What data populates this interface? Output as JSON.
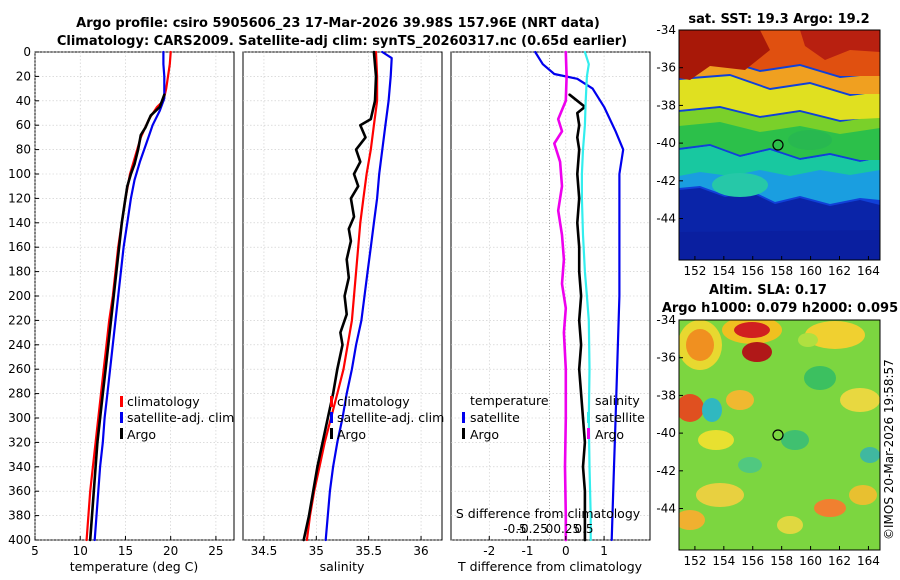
{
  "header": {
    "line1": "Argo profile: csiro 5905606_23 17-Mar-2026 39.98S 157.96E (NRT data)",
    "line2": "Climatology: CARS2009. Satellite-adj clim: synTS_20260317.nc (0.65d earlier)"
  },
  "colors": {
    "climatology": "#ff0000",
    "satellite": "#0000ee",
    "argo": "#000000",
    "s_satellite": "#33eeee",
    "s_argo": "#ee00ee"
  },
  "depth_axis": {
    "min": 0,
    "max": 400,
    "ticks": [
      0,
      20,
      40,
      60,
      80,
      100,
      120,
      140,
      160,
      180,
      200,
      220,
      240,
      260,
      280,
      300,
      320,
      340,
      360,
      380,
      400
    ]
  },
  "chart_data": [
    {
      "type": "line",
      "title": "",
      "xlabel": "temperature (deg C)",
      "ylabel": "depth",
      "xlim": [
        5,
        27
      ],
      "ylim": [
        0,
        400
      ],
      "xticks": [
        5,
        10,
        15,
        20,
        25
      ],
      "legend": [
        "climatology",
        "satellite-adj. clim",
        "Argo"
      ],
      "series": [
        {
          "name": "climatology",
          "color": "#ff0000",
          "points": [
            [
              20.0,
              0
            ],
            [
              19.9,
              10
            ],
            [
              19.7,
              20
            ],
            [
              19.5,
              30
            ],
            [
              19.2,
              40
            ],
            [
              18.5,
              45
            ],
            [
              17.6,
              55
            ],
            [
              16.7,
              70
            ],
            [
              16.1,
              85
            ],
            [
              15.5,
              100
            ],
            [
              15.0,
              120
            ],
            [
              14.6,
              140
            ],
            [
              14.2,
              160
            ],
            [
              13.9,
              180
            ],
            [
              13.6,
              200
            ],
            [
              13.2,
              220
            ],
            [
              12.9,
              240
            ],
            [
              12.6,
              260
            ],
            [
              12.3,
              280
            ],
            [
              12.0,
              300
            ],
            [
              11.7,
              320
            ],
            [
              11.4,
              340
            ],
            [
              11.1,
              360
            ],
            [
              10.9,
              380
            ],
            [
              10.7,
              400
            ]
          ]
        },
        {
          "name": "satellite-adj. clim",
          "color": "#0000ee",
          "points": [
            [
              19.2,
              0
            ],
            [
              19.2,
              10
            ],
            [
              19.3,
              20
            ],
            [
              19.3,
              30
            ],
            [
              19.3,
              38
            ],
            [
              18.8,
              48
            ],
            [
              18.0,
              60
            ],
            [
              17.3,
              75
            ],
            [
              16.6,
              90
            ],
            [
              16.0,
              105
            ],
            [
              15.6,
              120
            ],
            [
              15.2,
              140
            ],
            [
              14.8,
              160
            ],
            [
              14.5,
              180
            ],
            [
              14.2,
              200
            ],
            [
              13.9,
              220
            ],
            [
              13.6,
              240
            ],
            [
              13.3,
              260
            ],
            [
              13.0,
              280
            ],
            [
              12.7,
              300
            ],
            [
              12.5,
              320
            ],
            [
              12.2,
              340
            ],
            [
              12.0,
              360
            ],
            [
              11.8,
              380
            ],
            [
              11.6,
              400
            ]
          ]
        },
        {
          "name": "Argo",
          "color": "#000000",
          "points": [
            [
              19.3,
              35
            ],
            [
              18.8,
              45
            ],
            [
              17.8,
              52
            ],
            [
              17.2,
              62
            ],
            [
              16.7,
              68
            ],
            [
              16.4,
              80
            ],
            [
              16.0,
              92
            ],
            [
              15.6,
              100
            ],
            [
              15.2,
              110
            ],
            [
              14.9,
              125
            ],
            [
              14.6,
              140
            ],
            [
              14.3,
              160
            ],
            [
              14.0,
              180
            ],
            [
              13.7,
              200
            ],
            [
              13.4,
              220
            ],
            [
              13.1,
              240
            ],
            [
              12.8,
              260
            ],
            [
              12.5,
              280
            ],
            [
              12.2,
              300
            ],
            [
              11.9,
              320
            ],
            [
              11.7,
              340
            ],
            [
              11.5,
              360
            ],
            [
              11.3,
              380
            ],
            [
              11.1,
              400
            ]
          ]
        }
      ]
    },
    {
      "type": "line",
      "title": "",
      "xlabel": "salinity",
      "ylabel": "depth",
      "xlim": [
        34.3,
        36.2
      ],
      "ylim": [
        0,
        400
      ],
      "xticks": [
        34.5,
        35,
        35.5,
        36
      ],
      "legend": [
        "climatology",
        "satellite-adj. clim",
        "Argo"
      ],
      "series": [
        {
          "name": "climatology",
          "color": "#ff0000",
          "points": [
            [
              35.57,
              0
            ],
            [
              35.58,
              20
            ],
            [
              35.58,
              40
            ],
            [
              35.55,
              60
            ],
            [
              35.52,
              80
            ],
            [
              35.48,
              100
            ],
            [
              35.45,
              120
            ],
            [
              35.42,
              140
            ],
            [
              35.4,
              160
            ],
            [
              35.38,
              180
            ],
            [
              35.36,
              200
            ],
            [
              35.34,
              220
            ],
            [
              35.3,
              240
            ],
            [
              35.26,
              260
            ],
            [
              35.2,
              280
            ],
            [
              35.14,
              300
            ],
            [
              35.08,
              320
            ],
            [
              35.03,
              340
            ],
            [
              34.98,
              360
            ],
            [
              34.94,
              380
            ],
            [
              34.91,
              400
            ]
          ]
        },
        {
          "name": "satellite-adj. clim",
          "color": "#0000ee",
          "points": [
            [
              35.63,
              0
            ],
            [
              35.72,
              5
            ],
            [
              35.71,
              20
            ],
            [
              35.69,
              40
            ],
            [
              35.66,
              60
            ],
            [
              35.63,
              80
            ],
            [
              35.6,
              100
            ],
            [
              35.58,
              120
            ],
            [
              35.55,
              140
            ],
            [
              35.52,
              160
            ],
            [
              35.49,
              180
            ],
            [
              35.46,
              200
            ],
            [
              35.43,
              220
            ],
            [
              35.38,
              240
            ],
            [
              35.34,
              260
            ],
            [
              35.29,
              280
            ],
            [
              35.25,
              300
            ],
            [
              35.2,
              320
            ],
            [
              35.16,
              340
            ],
            [
              35.13,
              360
            ],
            [
              35.11,
              380
            ],
            [
              35.09,
              400
            ]
          ]
        },
        {
          "name": "Argo",
          "color": "#000000",
          "points": [
            [
              35.55,
              0
            ],
            [
              35.57,
              20
            ],
            [
              35.56,
              40
            ],
            [
              35.52,
              55
            ],
            [
              35.42,
              60
            ],
            [
              35.47,
              70
            ],
            [
              35.38,
              80
            ],
            [
              35.42,
              90
            ],
            [
              35.36,
              100
            ],
            [
              35.4,
              110
            ],
            [
              35.33,
              120
            ],
            [
              35.36,
              135
            ],
            [
              35.31,
              145
            ],
            [
              35.33,
              155
            ],
            [
              35.29,
              170
            ],
            [
              35.31,
              185
            ],
            [
              35.27,
              200
            ],
            [
              35.29,
              215
            ],
            [
              35.23,
              230
            ],
            [
              35.25,
              240
            ],
            [
              35.2,
              260
            ],
            [
              35.16,
              280
            ],
            [
              35.11,
              300
            ],
            [
              35.06,
              320
            ],
            [
              35.01,
              340
            ],
            [
              34.97,
              360
            ],
            [
              34.93,
              380
            ],
            [
              34.88,
              400
            ]
          ]
        }
      ]
    },
    {
      "type": "line",
      "title": "",
      "xlabel": "T difference from climatology",
      "xlabel_top": "S difference from climatology",
      "ylabel": "depth",
      "xlim": [
        -3,
        2.2
      ],
      "ylim": [
        0,
        400
      ],
      "xticks": [
        -2,
        -1,
        0,
        1
      ],
      "s_ticks": [
        -0.5,
        -0.25,
        0,
        0.25,
        0.5
      ],
      "s_tick_labels": [
        "-0.5",
        "-0.25",
        "0",
        "0.25",
        "0.5"
      ],
      "legend_left_title": "temperature",
      "legend_right_title": "salinity",
      "legend": [
        "satellite",
        "Argo",
        "satellite",
        "Argo"
      ],
      "series": [
        {
          "name": "T satellite",
          "color": "#0000ee",
          "points": [
            [
              -0.8,
              0
            ],
            [
              -0.6,
              10
            ],
            [
              -0.3,
              18
            ],
            [
              0.3,
              22
            ],
            [
              0.7,
              30
            ],
            [
              1.0,
              45
            ],
            [
              1.3,
              65
            ],
            [
              1.5,
              80
            ],
            [
              1.4,
              100
            ],
            [
              1.4,
              120
            ],
            [
              1.4,
              150
            ],
            [
              1.4,
              200
            ],
            [
              1.35,
              250
            ],
            [
              1.3,
              300
            ],
            [
              1.25,
              350
            ],
            [
              1.2,
              400
            ]
          ]
        },
        {
          "name": "T Argo",
          "color": "#000000",
          "points": [
            [
              0.1,
              35
            ],
            [
              0.3,
              40
            ],
            [
              0.5,
              45
            ],
            [
              0.3,
              50
            ],
            [
              0.35,
              60
            ],
            [
              0.3,
              70
            ],
            [
              0.35,
              80
            ],
            [
              0.3,
              100
            ],
            [
              0.35,
              120
            ],
            [
              0.3,
              140
            ],
            [
              0.35,
              160
            ],
            [
              0.35,
              180
            ],
            [
              0.4,
              200
            ],
            [
              0.35,
              220
            ],
            [
              0.4,
              240
            ],
            [
              0.35,
              260
            ],
            [
              0.4,
              280
            ],
            [
              0.45,
              300
            ],
            [
              0.5,
              320
            ],
            [
              0.45,
              340
            ],
            [
              0.5,
              360
            ],
            [
              0.5,
              380
            ],
            [
              0.5,
              400
            ]
          ]
        },
        {
          "name": "S satellite",
          "color": "#33eeee",
          "points": [
            [
              0.5,
              0
            ],
            [
              0.6,
              10
            ],
            [
              0.55,
              20
            ],
            [
              0.52,
              40
            ],
            [
              0.5,
              60
            ],
            [
              0.45,
              80
            ],
            [
              0.42,
              100
            ],
            [
              0.42,
              120
            ],
            [
              0.45,
              150
            ],
            [
              0.5,
              180
            ],
            [
              0.55,
              200
            ],
            [
              0.6,
              220
            ],
            [
              0.62,
              260
            ],
            [
              0.6,
              300
            ],
            [
              0.62,
              340
            ],
            [
              0.65,
              380
            ],
            [
              0.65,
              400
            ]
          ]
        },
        {
          "name": "S Argo",
          "color": "#ee00ee",
          "points": [
            [
              0.0,
              0
            ],
            [
              0.02,
              20
            ],
            [
              0.0,
              40
            ],
            [
              -0.2,
              55
            ],
            [
              -0.1,
              65
            ],
            [
              -0.3,
              75
            ],
            [
              -0.15,
              90
            ],
            [
              -0.1,
              110
            ],
            [
              -0.2,
              130
            ],
            [
              -0.1,
              150
            ],
            [
              -0.05,
              170
            ],
            [
              -0.1,
              190
            ],
            [
              0.0,
              210
            ],
            [
              -0.05,
              230
            ],
            [
              0.0,
              260
            ],
            [
              0.0,
              300
            ],
            [
              -0.02,
              340
            ],
            [
              0.0,
              380
            ],
            [
              0.0,
              400
            ]
          ]
        }
      ]
    }
  ],
  "maps": {
    "sst": {
      "title": "sat. SST: 19.3 Argo: 19.2",
      "lon_ticks": [
        152,
        154,
        156,
        158,
        160,
        162,
        164
      ],
      "lat_ticks": [
        -34,
        -36,
        -38,
        -40,
        -42,
        -44
      ],
      "marker": {
        "lon": 157.96,
        "lat": -39.98
      }
    },
    "sla": {
      "title_line1": "Altim. SLA: 0.17",
      "title_line2": "Argo h1000: 0.079 h2000: 0.095",
      "lon_ticks": [
        152,
        154,
        156,
        158,
        160,
        162,
        164
      ],
      "lat_ticks": [
        -34,
        -36,
        -38,
        -40,
        -42,
        -44
      ],
      "marker": {
        "lon": 157.96,
        "lat": -39.98
      }
    }
  },
  "credit": "©IMOS 20-Mar-2026 19:58:57"
}
